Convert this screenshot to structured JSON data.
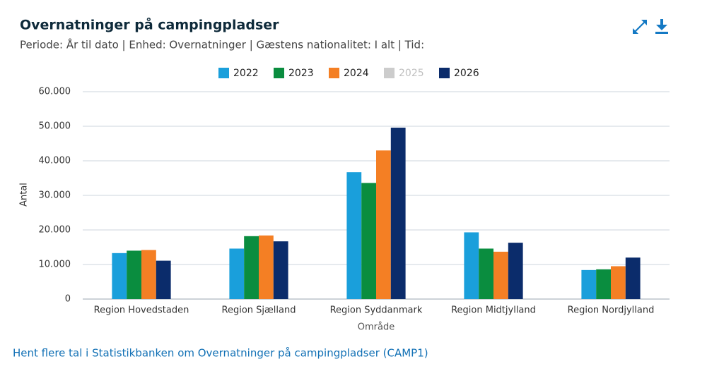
{
  "title": "Overnatninger på campingpladser",
  "subtitle": "Periode: År til dato | Enhed: Overnatninger | Gæstens nationalitet: I alt | Tid:",
  "link": "Hent flere tal i Statistikbanken om Overnatninger på campingpladser (CAMP1)",
  "chart_data": {
    "type": "bar",
    "x_label": "Område",
    "y_label": "Antal",
    "categories": [
      "Region Hovedstaden",
      "Region Sjælland",
      "Region Syddanmark",
      "Region Midtjylland",
      "Region Nordjylland"
    ],
    "series": [
      {
        "name": "2022",
        "color": "#1a9fdb",
        "visible": true,
        "values": [
          13300,
          14600,
          36700,
          19300,
          8400
        ]
      },
      {
        "name": "2023",
        "color": "#0a8d3f",
        "visible": true,
        "values": [
          14000,
          18200,
          33600,
          14600,
          8600
        ]
      },
      {
        "name": "2024",
        "color": "#f47f24",
        "visible": true,
        "values": [
          14200,
          18400,
          43000,
          13700,
          9500
        ]
      },
      {
        "name": "2025",
        "color": "#cccccc",
        "visible": false,
        "values": [
          null,
          null,
          null,
          null,
          null
        ]
      },
      {
        "name": "2026",
        "color": "#0b2c6b",
        "visible": true,
        "values": [
          11100,
          16700,
          49600,
          16300,
          12000
        ]
      }
    ],
    "ylim": [
      0,
      60000
    ],
    "yticks": [
      0,
      {
        "value": 10000,
        "label": "10.000"
      },
      {
        "value": 20000,
        "label": "20.000"
      },
      {
        "value": 30000,
        "label": "30.000"
      },
      {
        "value": 40000,
        "label": "40.000"
      },
      {
        "value": 50000,
        "label": "50.000"
      },
      {
        "value": 60000,
        "label": "60.000"
      }
    ],
    "grid": true,
    "legend": "top"
  }
}
